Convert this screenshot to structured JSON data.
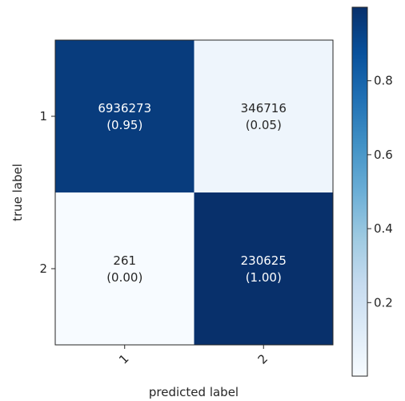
{
  "chart_data": {
    "type": "heatmap",
    "title": "",
    "xlabel": "predicted label",
    "ylabel": "true label",
    "x_categories": [
      "1",
      "2"
    ],
    "y_categories": [
      "1",
      "2"
    ],
    "counts": [
      [
        6936273,
        346716
      ],
      [
        261,
        230625
      ]
    ],
    "fractions_label": [
      [
        "(0.95)",
        "(0.05)"
      ],
      [
        "(0.00)",
        "(1.00)"
      ]
    ],
    "fractions": [
      [
        0.952,
        0.048
      ],
      [
        0.0011,
        0.9989
      ]
    ],
    "colorbar": {
      "colormap": "Blues",
      "range": [
        0.0011,
        0.9989
      ],
      "ticks": [
        "0.2",
        "0.4",
        "0.6",
        "0.8"
      ],
      "tick_values": [
        0.2,
        0.4,
        0.6,
        0.8
      ]
    },
    "colors": {
      "low": "#f7fbff",
      "high": "#08306b",
      "text_light": "#ffffff",
      "text_dark": "#262626"
    }
  }
}
